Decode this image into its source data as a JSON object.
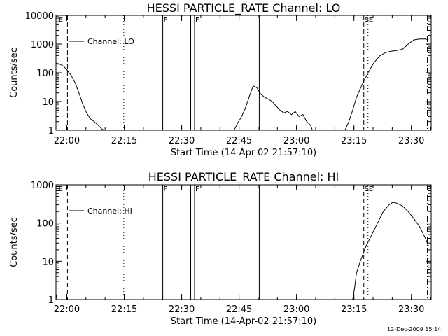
{
  "footer": {
    "timestamp": "12-Dec-2009 15:14"
  },
  "chart_data": [
    {
      "type": "line",
      "title": "HESSI PARTICLE_RATE Channel: LO",
      "xlabel": "Start Time (14-Apr-02 21:57:10)",
      "ylabel": "Counts/sec",
      "yscale": "log",
      "ylim": [
        1,
        10000
      ],
      "xlim_min_after_start": [
        0,
        98
      ],
      "xticks": [
        {
          "t": 2.83,
          "label": "22:00"
        },
        {
          "t": 17.83,
          "label": "22:15"
        },
        {
          "t": 32.83,
          "label": "22:30"
        },
        {
          "t": 47.83,
          "label": "22:45"
        },
        {
          "t": 62.83,
          "label": "23:00"
        },
        {
          "t": 77.83,
          "label": "23:15"
        },
        {
          "t": 92.83,
          "label": "23:30"
        }
      ],
      "yticks": [
        {
          "v": 1,
          "label": "1"
        },
        {
          "v": 10,
          "label": "10"
        },
        {
          "v": 100,
          "label": "100"
        },
        {
          "v": 1000,
          "label": "1000"
        },
        {
          "v": 10000,
          "label": "10000"
        }
      ],
      "series": [
        {
          "name": "Channel: LO",
          "points": [
            [
              0,
              220
            ],
            [
              1,
              200
            ],
            [
              2,
              170
            ],
            [
              3,
              120
            ],
            [
              4,
              80
            ],
            [
              5,
              45
            ],
            [
              6,
              20
            ],
            [
              7,
              8
            ],
            [
              8,
              4
            ],
            [
              9,
              2.5
            ],
            [
              10,
              2
            ],
            [
              11,
              1.5
            ],
            [
              12,
              1.1
            ],
            [
              12.6,
              1
            ],
            [
              46.5,
              1
            ],
            [
              47.5,
              1.8
            ],
            [
              48.5,
              3
            ],
            [
              49.5,
              6
            ],
            [
              50.5,
              15
            ],
            [
              51.5,
              35
            ],
            [
              52.5,
              30
            ],
            [
              53.5,
              18
            ],
            [
              54.5,
              14
            ],
            [
              55.5,
              12
            ],
            [
              56.5,
              10
            ],
            [
              57.5,
              7
            ],
            [
              58.5,
              5
            ],
            [
              59.5,
              4
            ],
            [
              60.5,
              4.5
            ],
            [
              61.5,
              3.5
            ],
            [
              62.5,
              4.5
            ],
            [
              63.5,
              3
            ],
            [
              64.5,
              3.5
            ],
            [
              65.5,
              2
            ],
            [
              66.5,
              1.5
            ],
            [
              67,
              1
            ],
            [
              75.5,
              1
            ],
            [
              76.5,
              2
            ],
            [
              77.5,
              5
            ],
            [
              78.5,
              14
            ],
            [
              80,
              40
            ],
            [
              81.5,
              100
            ],
            [
              83,
              220
            ],
            [
              84.5,
              380
            ],
            [
              86,
              500
            ],
            [
              87.5,
              560
            ],
            [
              89,
              600
            ],
            [
              90.5,
              660
            ],
            [
              92,
              1000
            ],
            [
              93.5,
              1400
            ],
            [
              95,
              1500
            ],
            [
              96.5,
              1500
            ],
            [
              97.3,
              1400
            ]
          ]
        }
      ],
      "markers": [
        {
          "t": 0.5,
          "label": "E",
          "style": "label-only"
        },
        {
          "t": 3.0,
          "style": "dashed"
        },
        {
          "t": 17.7,
          "style": "dotted"
        },
        {
          "t": 27.9,
          "label": "F",
          "style": "solid"
        },
        {
          "t": 35.2,
          "style": "solid"
        },
        {
          "t": 36.2,
          "label": "F",
          "style": "solid"
        },
        {
          "t": 53.1,
          "style": "solid"
        },
        {
          "t": 80.4,
          "label": "S",
          "style": "dashed"
        },
        {
          "t": 81.5,
          "label": "E",
          "style": "dotted"
        },
        {
          "t": 97.0,
          "style": "dash-dot"
        }
      ],
      "legend": {
        "placement": "top-left",
        "label": "Channel: LO"
      }
    },
    {
      "type": "line",
      "title": "HESSI PARTICLE_RATE Channel: HI",
      "xlabel": "Start Time (14-Apr-02 21:57:10)",
      "ylabel": "Counts/sec",
      "yscale": "log",
      "ylim": [
        1,
        1000
      ],
      "xlim_min_after_start": [
        0,
        98
      ],
      "xticks": [
        {
          "t": 2.83,
          "label": "22:00"
        },
        {
          "t": 17.83,
          "label": "22:15"
        },
        {
          "t": 32.83,
          "label": "22:30"
        },
        {
          "t": 47.83,
          "label": "22:45"
        },
        {
          "t": 62.83,
          "label": "23:00"
        },
        {
          "t": 77.83,
          "label": "23:15"
        },
        {
          "t": 92.83,
          "label": "23:30"
        }
      ],
      "yticks": [
        {
          "v": 1,
          "label": "1"
        },
        {
          "v": 10,
          "label": "10"
        },
        {
          "v": 100,
          "label": "100"
        },
        {
          "v": 1000,
          "label": "1000"
        }
      ],
      "series": [
        {
          "name": "Channel: HI",
          "points": [
            [
              0,
              1.4
            ],
            [
              0.3,
              1
            ],
            [
              77.5,
              1
            ],
            [
              78,
              2
            ],
            [
              78.5,
              5
            ],
            [
              79.5,
              10
            ],
            [
              81,
              25
            ],
            [
              82.5,
              50
            ],
            [
              84,
              100
            ],
            [
              85.5,
              200
            ],
            [
              87,
              300
            ],
            [
              88,
              350
            ],
            [
              89,
              330
            ],
            [
              90.5,
              280
            ],
            [
              92,
              200
            ],
            [
              93.5,
              130
            ],
            [
              95,
              80
            ],
            [
              96.5,
              40
            ],
            [
              97.3,
              25
            ]
          ]
        }
      ],
      "markers": [
        {
          "t": 0.5,
          "label": "E",
          "style": "label-only"
        },
        {
          "t": 3.0,
          "style": "dashed"
        },
        {
          "t": 17.7,
          "style": "dotted"
        },
        {
          "t": 27.9,
          "label": "F",
          "style": "solid"
        },
        {
          "t": 35.2,
          "style": "solid"
        },
        {
          "t": 36.2,
          "label": "F",
          "style": "solid"
        },
        {
          "t": 53.1,
          "style": "solid"
        },
        {
          "t": 80.4,
          "label": "S",
          "style": "dashed"
        },
        {
          "t": 81.5,
          "label": "E",
          "style": "dotted"
        },
        {
          "t": 97.0,
          "style": "dash-dot"
        }
      ],
      "legend": {
        "placement": "top-left",
        "label": "Channel: HI"
      }
    }
  ]
}
